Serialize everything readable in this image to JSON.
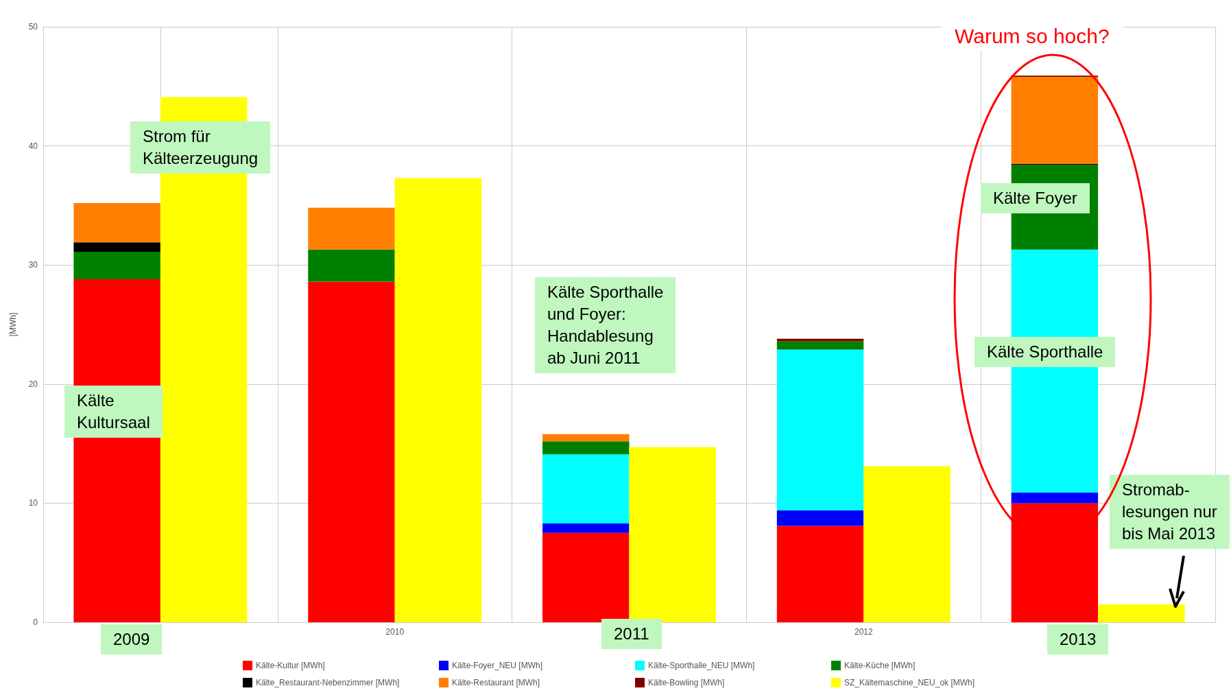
{
  "chart_data": {
    "type": "bar",
    "ylabel": "[MWh]",
    "categories": [
      null,
      "2010",
      null,
      "2012",
      null
    ],
    "grid": true,
    "legend": "bottom",
    "ylim": [
      0,
      50
    ],
    "yticks": [
      0,
      10,
      20,
      30,
      40,
      50
    ],
    "series": [
      {
        "name": "Kälte-Kultur [MWh]",
        "color": "#ff0000",
        "base": [
          0,
          0,
          0,
          0,
          0
        ],
        "values": [
          28.8,
          28.6,
          7.5,
          8.1,
          10.0
        ]
      },
      {
        "name": "Kälte-Foyer_NEU [MWh]",
        "color": "#0000ff",
        "base": [
          null,
          null,
          7.5,
          8.1,
          10.0
        ],
        "values": [
          null,
          null,
          0.8,
          1.3,
          0.9
        ]
      },
      {
        "name": "Kälte-Sporthalle_NEU [MWh]",
        "color": "#00ffff",
        "base": [
          null,
          null,
          8.3,
          9.4,
          10.9
        ],
        "values": [
          null,
          null,
          5.8,
          13.5,
          20.4
        ]
      },
      {
        "name": "Kälte-Küche [MWh]",
        "color": "#008000",
        "base": [
          28.8,
          28.6,
          14.1,
          22.9,
          31.3
        ],
        "values": [
          2.3,
          2.7,
          1.1,
          0.7,
          7.1
        ]
      },
      {
        "name": "Kälte_Restaurant-Nebenzimmer [MWh]",
        "color": "#000000",
        "base": [
          31.1,
          null,
          null,
          null,
          38.4
        ],
        "values": [
          0.8,
          null,
          null,
          null,
          0.1
        ]
      },
      {
        "name": "Kälte-Restaurant [MWh]",
        "color": "#ff8000",
        "base": [
          31.9,
          31.3,
          15.2,
          null,
          38.5
        ],
        "values": [
          3.3,
          3.5,
          0.6,
          null,
          7.3
        ]
      },
      {
        "name": "Kälte-Bowling [MWh]",
        "color": "#800000",
        "base": [
          null,
          null,
          null,
          23.6,
          45.8
        ],
        "values": [
          null,
          null,
          null,
          0.2,
          0.1
        ]
      },
      {
        "name": "SZ_Kältemaschine_NEU_ok [MWh]",
        "color": "#ffff00",
        "values": [
          44.1,
          37.3,
          14.7,
          13.1,
          1.5
        ]
      }
    ],
    "annotations": [
      "Warum so hoch?",
      "Strom für\nKälteerzeugung",
      "Kälte\nKultursaal",
      "Kälte Sporthalle\nund Foyer:\nHandablesung\nab Juni 2011",
      "Kälte Foyer",
      "Kälte Sporthalle",
      "Stromab-\nlesungen nur\nbis Mai 2013",
      "2009",
      "2011",
      "2013"
    ]
  }
}
